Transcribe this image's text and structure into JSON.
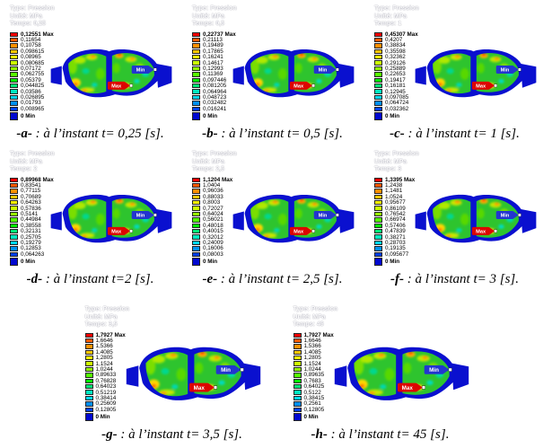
{
  "tags": {
    "max_label": "Max",
    "min_label": "Min"
  },
  "colors": {
    "max_tag": "#dd0500",
    "min_tag": "#2335cf",
    "plate": "#0a10cf",
    "pad_base": "#2ec42e",
    "legend": [
      "#ff0000",
      "#ff5a00",
      "#ff9000",
      "#ffc800",
      "#fff800",
      "#ccff00",
      "#96ff00",
      "#55ff00",
      "#00ee00",
      "#00e878",
      "#00e8c0",
      "#00d8f0",
      "#0090f0",
      "#0040e8",
      "#0008d0"
    ]
  },
  "panels": [
    {
      "id": "a",
      "header": {
        "type": "Type: Pression",
        "unit": "Unité: MPa",
        "time": "Temps: 0,25"
      },
      "legend": [
        "0,12551 Max",
        "0,11654",
        "0,10758",
        "0,098615",
        "0,08965",
        "0,080685",
        "0,07172",
        "0,062755",
        "0,05379",
        "0,044825",
        "0,03586",
        "0,026895",
        "0,01793",
        "0,008965",
        "0 Min"
      ],
      "caption": {
        "label": "-a-",
        "text": " : à l’instant t= 0,25 [s]."
      }
    },
    {
      "id": "b",
      "header": {
        "type": "Type: Pression",
        "unit": "Unité: MPa",
        "time": "Temps: 0,5"
      },
      "legend": [
        "0,22737 Max",
        "0,21113",
        "0,19489",
        "0,17865",
        "0,16241",
        "0,14617",
        "0,12993",
        "0,11369",
        "0,097446",
        "0,081205",
        "0,064964",
        "0,048723",
        "0,032482",
        "0,016241",
        "0 Min"
      ],
      "caption": {
        "label": "-b-",
        "text": " : à l’instant t= 0,5 [s]."
      }
    },
    {
      "id": "c",
      "header": {
        "type": "Type: Pression",
        "unit": "Unité: MPa",
        "time": "Temps: 1"
      },
      "legend": [
        "0,45307 Max",
        "0,4207",
        "0,38834",
        "0,35598",
        "0,32362",
        "0,29126",
        "0,25889",
        "0,22653",
        "0,19417",
        "0,16181",
        "0,12945",
        "0,097085",
        "0,064724",
        "0,032362",
        "0 Min"
      ],
      "caption": {
        "label": "-c-",
        "text": " : à l’instant t= 1 [s]."
      }
    },
    {
      "id": "d",
      "header": {
        "type": "Type: Pression",
        "unit": "Unité: MPa",
        "time": "Temps: 2"
      },
      "legend": [
        "0,89968 Max",
        "0,83541",
        "0,77115",
        "0,70689",
        "0,64263",
        "0,57836",
        "0,5141",
        "0,44984",
        "0,38558",
        "0,32131",
        "0,25705",
        "0,19279",
        "0,12853",
        "0,064263",
        "0 Min"
      ],
      "caption": {
        "label": "-d-",
        "text": " : à l’instant t=2 [s]."
      }
    },
    {
      "id": "e",
      "header": {
        "type": "Type: Pression",
        "unit": "Unité: MPa",
        "time": "Temps: 2,5"
      },
      "legend": [
        "1,1204 Max",
        "1,0404",
        "0,96036",
        "0,88033",
        "0,8003",
        "0,72027",
        "0,64024",
        "0,56021",
        "0,48018",
        "0,40015",
        "0,32012",
        "0,24009",
        "0,16006",
        "0,08003",
        "0 Min"
      ],
      "caption": {
        "label": "-e-",
        "text": " : à l’instant t= 2,5 [s]."
      }
    },
    {
      "id": "f",
      "header": {
        "type": "Type: Pression",
        "unit": "Unité: MPa",
        "time": "Temps: 3"
      },
      "legend": [
        "1,3395 Max",
        "1,2438",
        "1,1481",
        "1,0524",
        "0,95677",
        "0,86109",
        "0,76542",
        "0,66974",
        "0,57406",
        "0,47839",
        "0,38271",
        "0,28703",
        "0,19135",
        "0,095677",
        "0 Min"
      ],
      "caption": {
        "label": "-f-",
        "text": " : à l’instant t= 3 [s]."
      }
    },
    {
      "id": "g",
      "header": {
        "type": "Type: Pression",
        "unit": "Unité: MPa",
        "time": "Temps: 3,5"
      },
      "legend": [
        "1,7927 Max",
        "1,6646",
        "1,5366",
        "1,4085",
        "1,2805",
        "1,1524",
        "1,0244",
        "0,89633",
        "0,76828",
        "0,64023",
        "0,51219",
        "0,38414",
        "0,25609",
        "0,12805",
        "0 Min"
      ],
      "caption": {
        "label": "-g-",
        "text": " : à l’instant t= 3,5 [s]."
      }
    },
    {
      "id": "h",
      "header": {
        "type": "Type: Pression",
        "unit": "Unité: MPa",
        "time": "Temps: 45"
      },
      "legend": [
        "1,7927 Max",
        "1,6646",
        "1,5366",
        "1,4085",
        "1,2805",
        "1,1524",
        "1,0244",
        "0,89635",
        "0,7683",
        "0,64025",
        "0,5122",
        "0,38415",
        "0,2561",
        "0,12805",
        "0 Min"
      ],
      "caption": {
        "label": "-h-",
        "text": " : à l’instant t= 45 [s]."
      }
    }
  ]
}
